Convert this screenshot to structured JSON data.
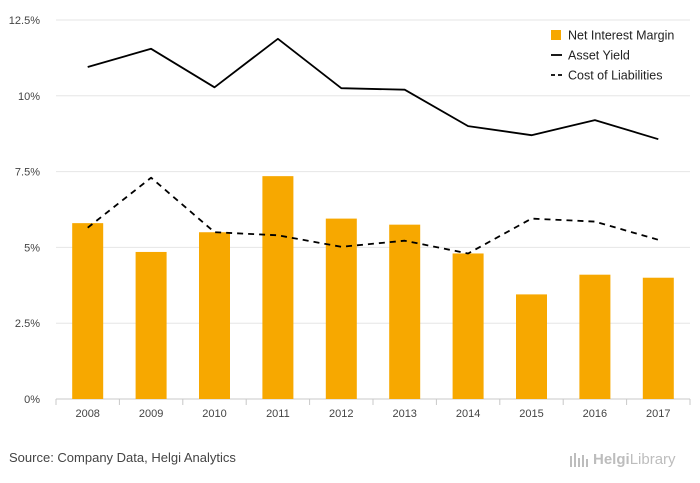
{
  "chart_data": {
    "type": "bar",
    "categories": [
      "2008",
      "2009",
      "2010",
      "2011",
      "2012",
      "2013",
      "2014",
      "2015",
      "2016",
      "2017"
    ],
    "series": [
      {
        "name": "Net Interest Margin",
        "kind": "bar",
        "color": "#f7a800",
        "values": [
          5.8,
          4.85,
          5.5,
          7.35,
          5.95,
          5.75,
          4.8,
          3.45,
          4.1,
          4.0
        ]
      },
      {
        "name": "Asset Yield",
        "kind": "line",
        "style": "solid",
        "color": "#000000",
        "values": [
          10.95,
          11.55,
          10.28,
          11.88,
          10.25,
          10.2,
          9.0,
          8.7,
          9.2,
          8.57
        ]
      },
      {
        "name": "Cost of Liabilities",
        "kind": "line",
        "style": "dashed",
        "color": "#000000",
        "values": [
          5.65,
          7.3,
          5.5,
          5.4,
          5.02,
          5.22,
          4.8,
          5.95,
          5.85,
          5.25
        ]
      }
    ],
    "y_ticks": [
      "0%",
      "2.5%",
      "5%",
      "7.5%",
      "10%",
      "12.5%"
    ],
    "ylim": [
      0,
      12.5
    ],
    "grid": true,
    "legend_position": "top-right"
  },
  "footer": {
    "source": "Source: Company Data, Helgi Analytics",
    "logo_text_1": "Helgi",
    "logo_text_2": "Library"
  }
}
